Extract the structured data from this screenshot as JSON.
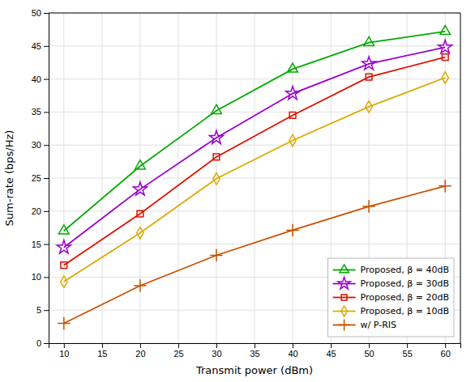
{
  "chart_data": {
    "type": "line",
    "xlabel": "Transmit power (dBm)",
    "ylabel": "Sum-rate (bps/Hz)",
    "x": [
      10,
      20,
      30,
      40,
      50,
      60
    ],
    "series": [
      {
        "name": "Proposed, β = 40dB",
        "color": "#00AA00",
        "marker": "triangle",
        "values": [
          17.0,
          26.8,
          35.2,
          41.5,
          45.5,
          47.2
        ]
      },
      {
        "name": "Proposed, β = 30dB",
        "color": "#9900CC",
        "marker": "star",
        "values": [
          14.5,
          23.3,
          31.1,
          37.8,
          42.3,
          44.8
        ]
      },
      {
        "name": "Proposed, β = 20dB",
        "color": "#DD1100",
        "marker": "square",
        "values": [
          11.8,
          19.6,
          28.2,
          34.5,
          40.3,
          43.3
        ]
      },
      {
        "name": "Proposed, β = 10dB",
        "color": "#DDAA00",
        "marker": "diamond",
        "values": [
          9.3,
          16.7,
          24.9,
          30.7,
          35.8,
          40.2
        ]
      },
      {
        "name": "w/ P-RIS",
        "color": "#C85000",
        "marker": "plus",
        "values": [
          3.0,
          8.7,
          13.3,
          17.1,
          20.7,
          23.8
        ]
      }
    ],
    "xlim": [
      8,
      62
    ],
    "ylim": [
      0,
      50
    ],
    "xticks": [
      10,
      15,
      20,
      25,
      30,
      35,
      40,
      45,
      50,
      55,
      60
    ],
    "yticks": [
      0,
      5,
      10,
      15,
      20,
      25,
      30,
      35,
      40,
      45,
      50
    ],
    "grid": true,
    "legend": "lower right"
  }
}
